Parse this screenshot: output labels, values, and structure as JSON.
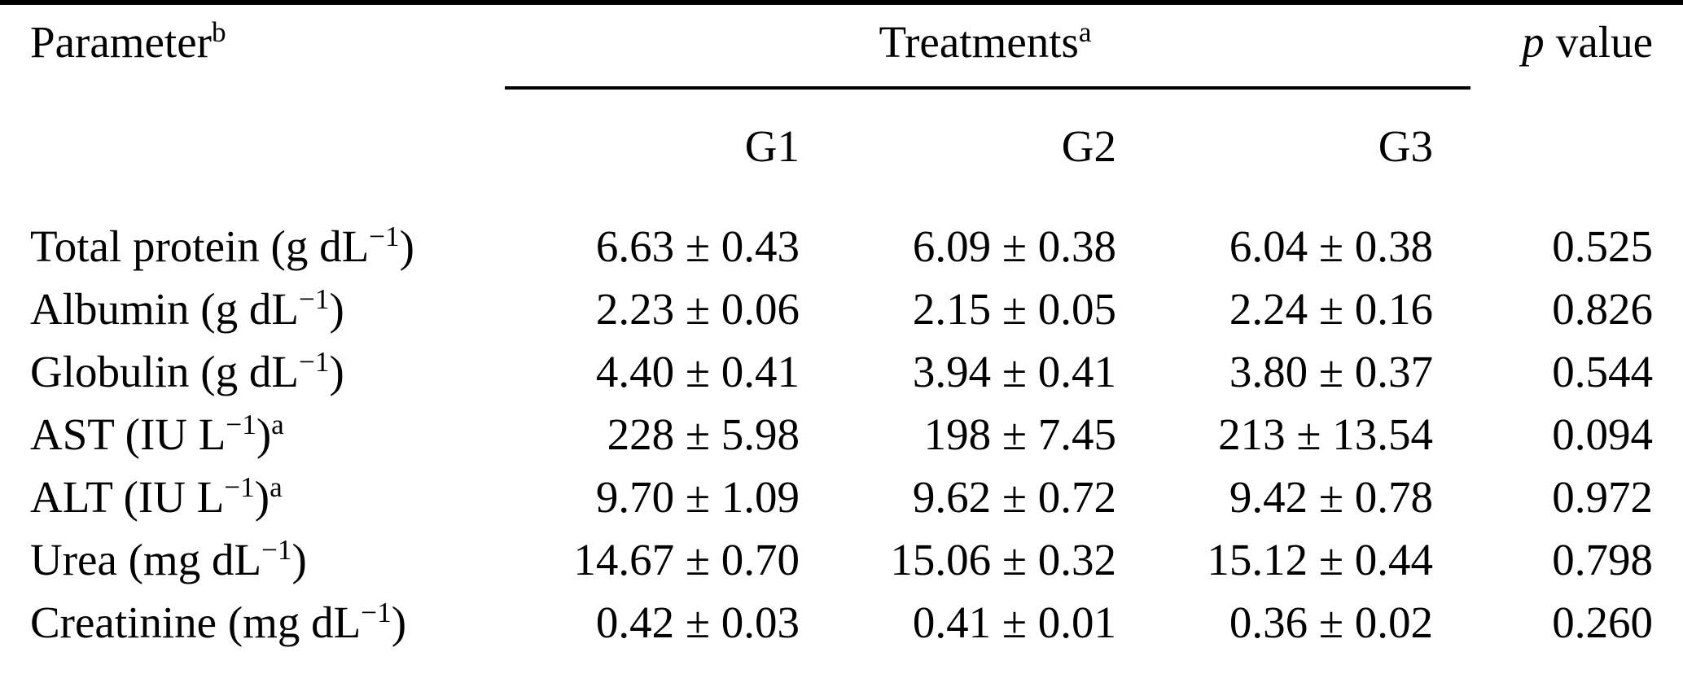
{
  "table": {
    "header": {
      "parameter": {
        "label": "Parameter",
        "sup": "b"
      },
      "treatments": {
        "label": "Treatments",
        "sup": "a"
      },
      "group_cols": [
        "G1",
        "G2",
        "G3"
      ],
      "p_col": {
        "italic": "p",
        "rest": "value"
      }
    },
    "rows": [
      {
        "param": "Total protein (g dL",
        "param_sup": "−1",
        "param_close": ")",
        "param_note": "",
        "g1": "6.63 ± 0.43",
        "g2": "6.09 ± 0.38",
        "g3": "6.04 ± 0.38",
        "p": "0.525"
      },
      {
        "param": "Albumin (g dL",
        "param_sup": "−1",
        "param_close": ")",
        "param_note": "",
        "g1": "2.23 ± 0.06",
        "g2": "2.15 ± 0.05",
        "g3": "2.24 ± 0.16",
        "p": "0.826"
      },
      {
        "param": "Globulin (g dL",
        "param_sup": "−1",
        "param_close": ")",
        "param_note": "",
        "g1": "4.40 ± 0.41",
        "g2": "3.94 ± 0.41",
        "g3": "3.80 ± 0.37",
        "p": "0.544"
      },
      {
        "param": "AST (IU L",
        "param_sup": "−1",
        "param_close": ")",
        "param_note": "a",
        "g1": "228 ± 5.98",
        "g2": "198 ± 7.45",
        "g3": "213 ± 13.54",
        "p": "0.094"
      },
      {
        "param": "ALT (IU L",
        "param_sup": "−1",
        "param_close": ")",
        "param_note": "a",
        "g1": "9.70 ± 1.09",
        "g2": "9.62 ± 0.72",
        "g3": "9.42 ± 0.78",
        "p": "0.972"
      },
      {
        "param": "Urea (mg dL",
        "param_sup": "−1",
        "param_close": ")",
        "param_note": "",
        "g1": "14.67 ± 0.70",
        "g2": "15.06 ± 0.32",
        "g3": "15.12 ± 0.44",
        "p": "0.798"
      },
      {
        "param": "Creatinine (mg dL",
        "param_sup": "−1",
        "param_close": ")",
        "param_note": "",
        "g1": "0.42 ± 0.03",
        "g2": "0.41 ± 0.01",
        "g3": "0.36 ± 0.02",
        "p": "0.260"
      }
    ]
  },
  "colors": {
    "text": "#000000",
    "background": "#ffffff",
    "rule": "#000000"
  }
}
